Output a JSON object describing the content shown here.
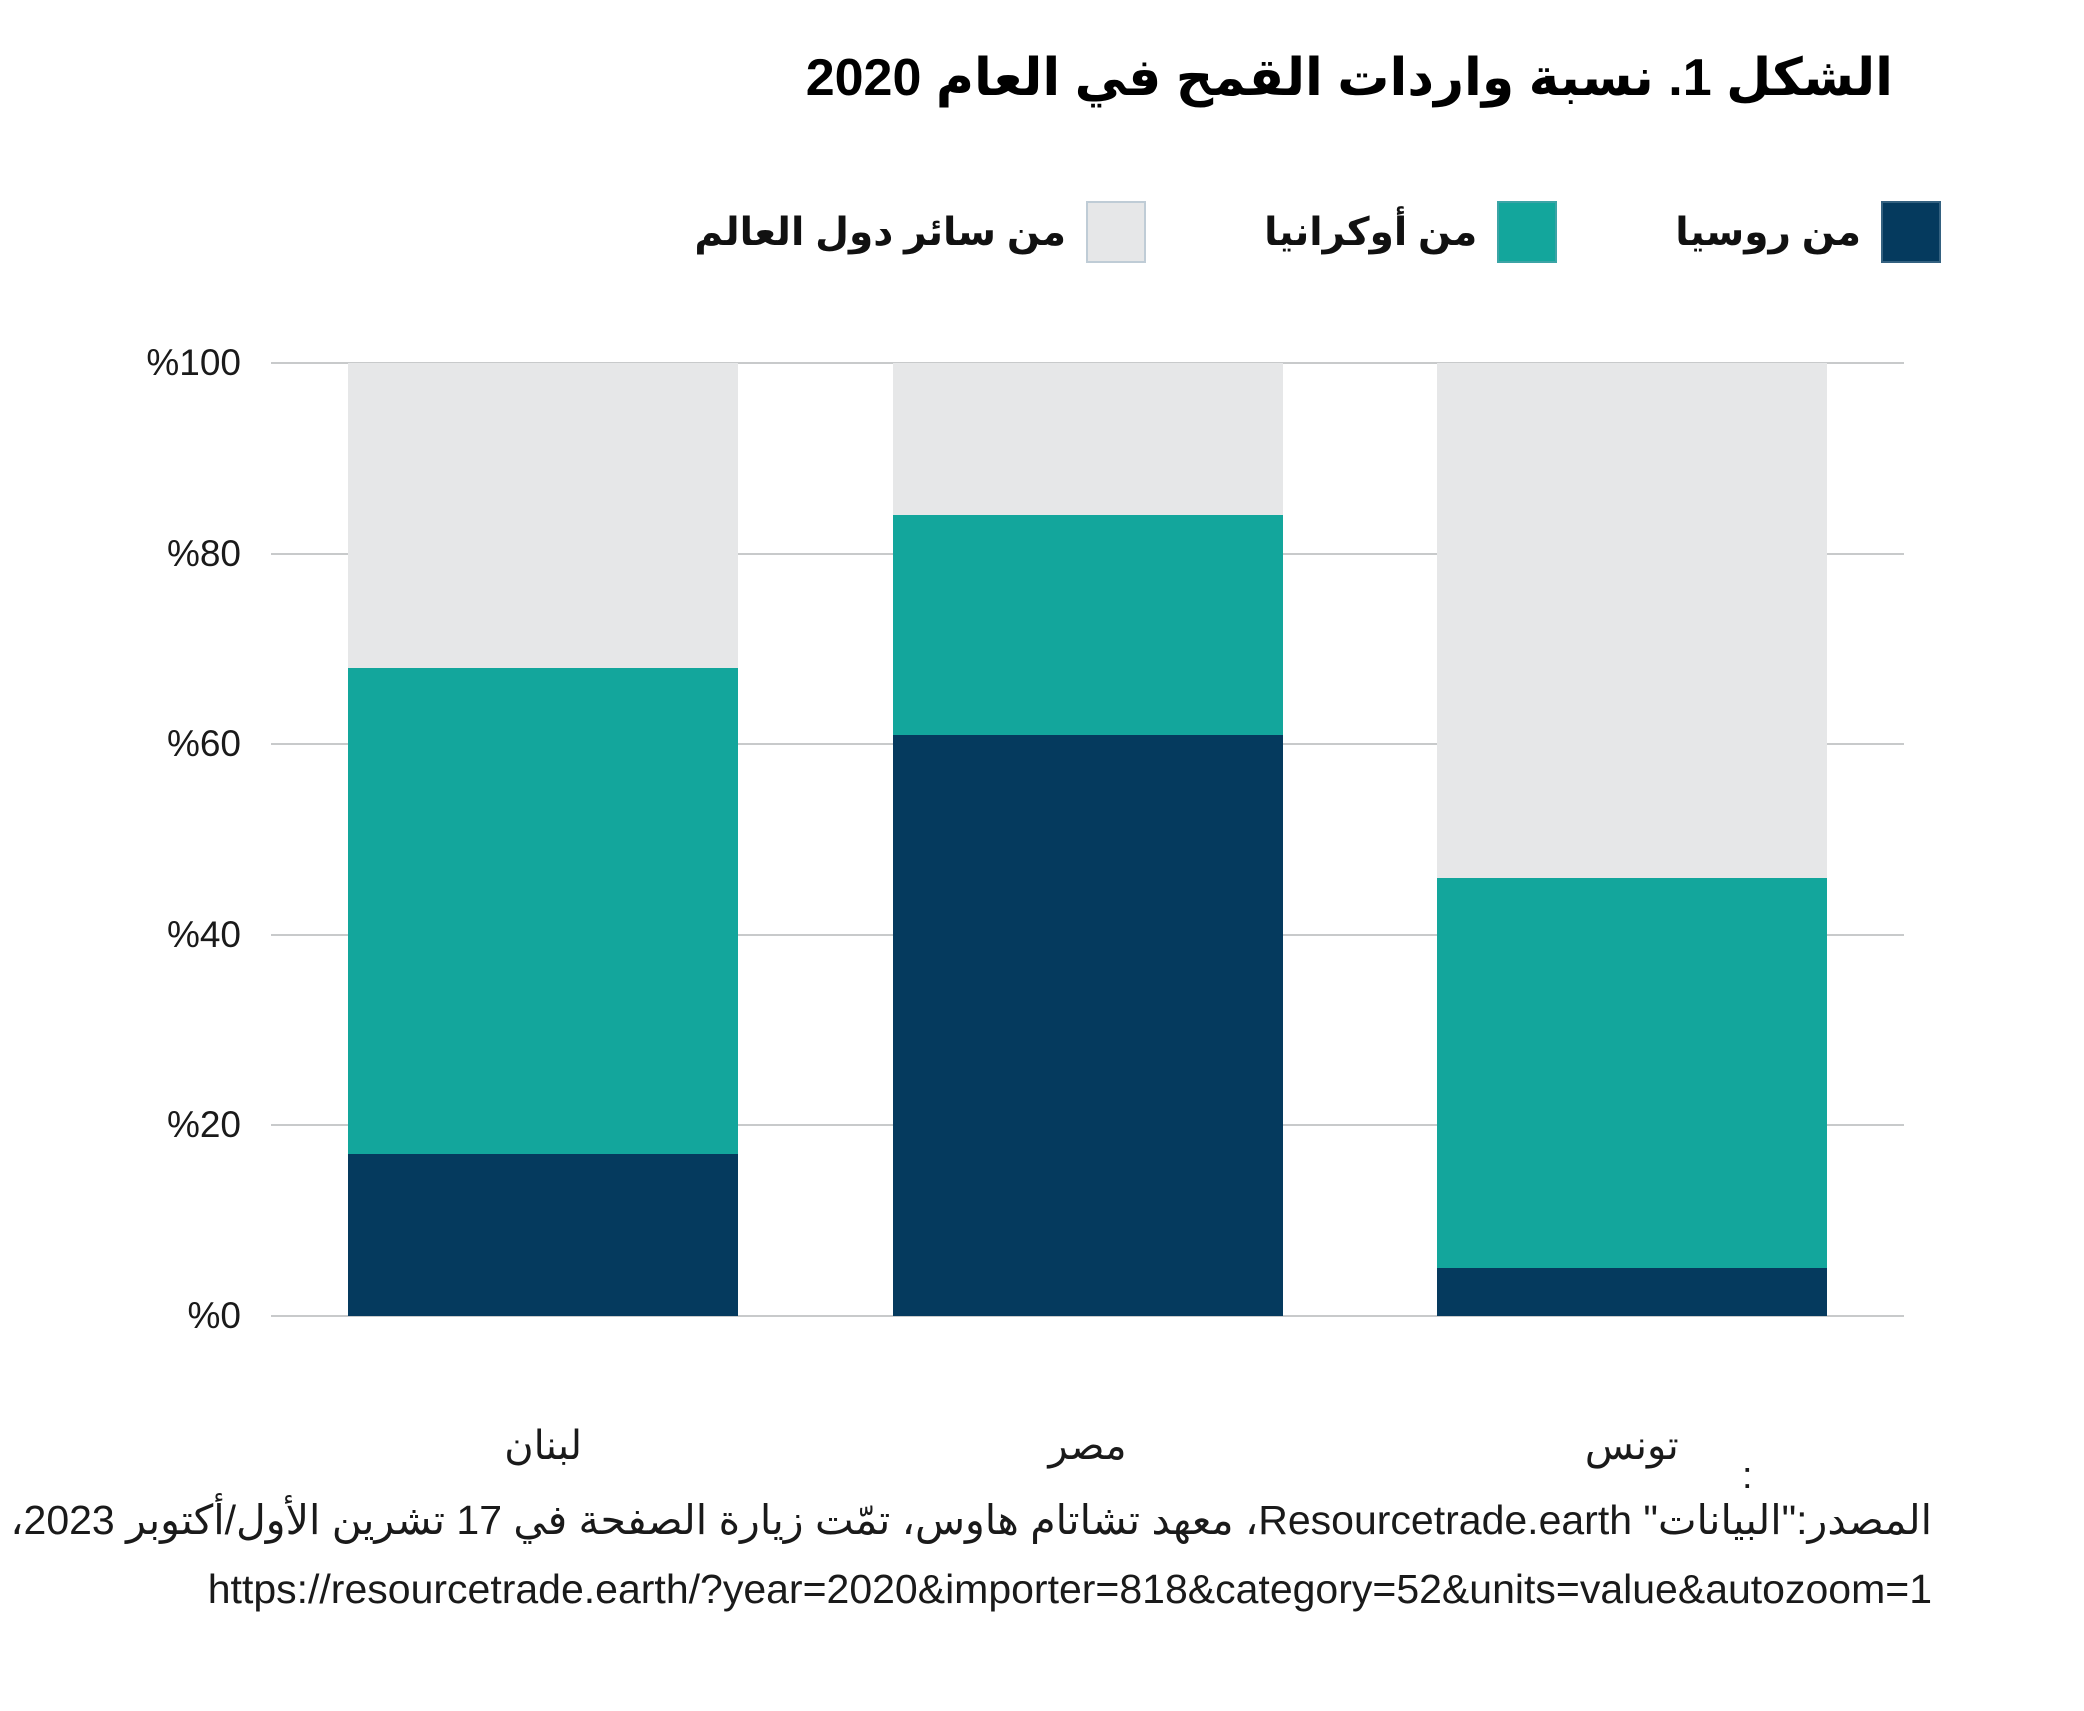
{
  "chart_data": {
    "type": "bar",
    "stacked": true,
    "direction": "rtl",
    "title": "الشكل 1. نسبة واردات القمح في العام 2020",
    "categories": [
      "لبنان",
      "مصر",
      "تونس"
    ],
    "series": [
      {
        "name": "من روسيا",
        "color": "#053a5e",
        "values": [
          17,
          61,
          5
        ]
      },
      {
        "name": "من أوكرانيا",
        "color": "#13a69c",
        "values": [
          51,
          23,
          41
        ]
      },
      {
        "name": "من سائر دول العالم",
        "color": "#e6e7e8",
        "values": [
          32,
          16,
          54
        ]
      }
    ],
    "xlabel": "",
    "ylabel": "",
    "ylim": [
      0,
      100
    ],
    "yticks": [
      {
        "value": 0,
        "label": "%0"
      },
      {
        "value": 20,
        "label": "%20"
      },
      {
        "value": 40,
        "label": "%40"
      },
      {
        "value": 60,
        "label": "%60"
      },
      {
        "value": 80,
        "label": "%80"
      },
      {
        "value": 100,
        "label": "%100"
      }
    ],
    "grid": true,
    "legend_position": "top-right"
  },
  "source": {
    "colon": ":",
    "line1": "المصدر:\"البيانات\" Resourcetrade.earth، معهد تشاتام هاوس، تمّت زيارة الصفحة في 17 تشرين الأول/أكتوبر 2023،",
    "url": "https://resourcetrade.earth/?year=2020&importer=818&category=52&units=value&autozoom=1"
  },
  "colors": {
    "background": "#ffffff",
    "gridline": "#c8cacb",
    "text": "#1a1a1a"
  }
}
